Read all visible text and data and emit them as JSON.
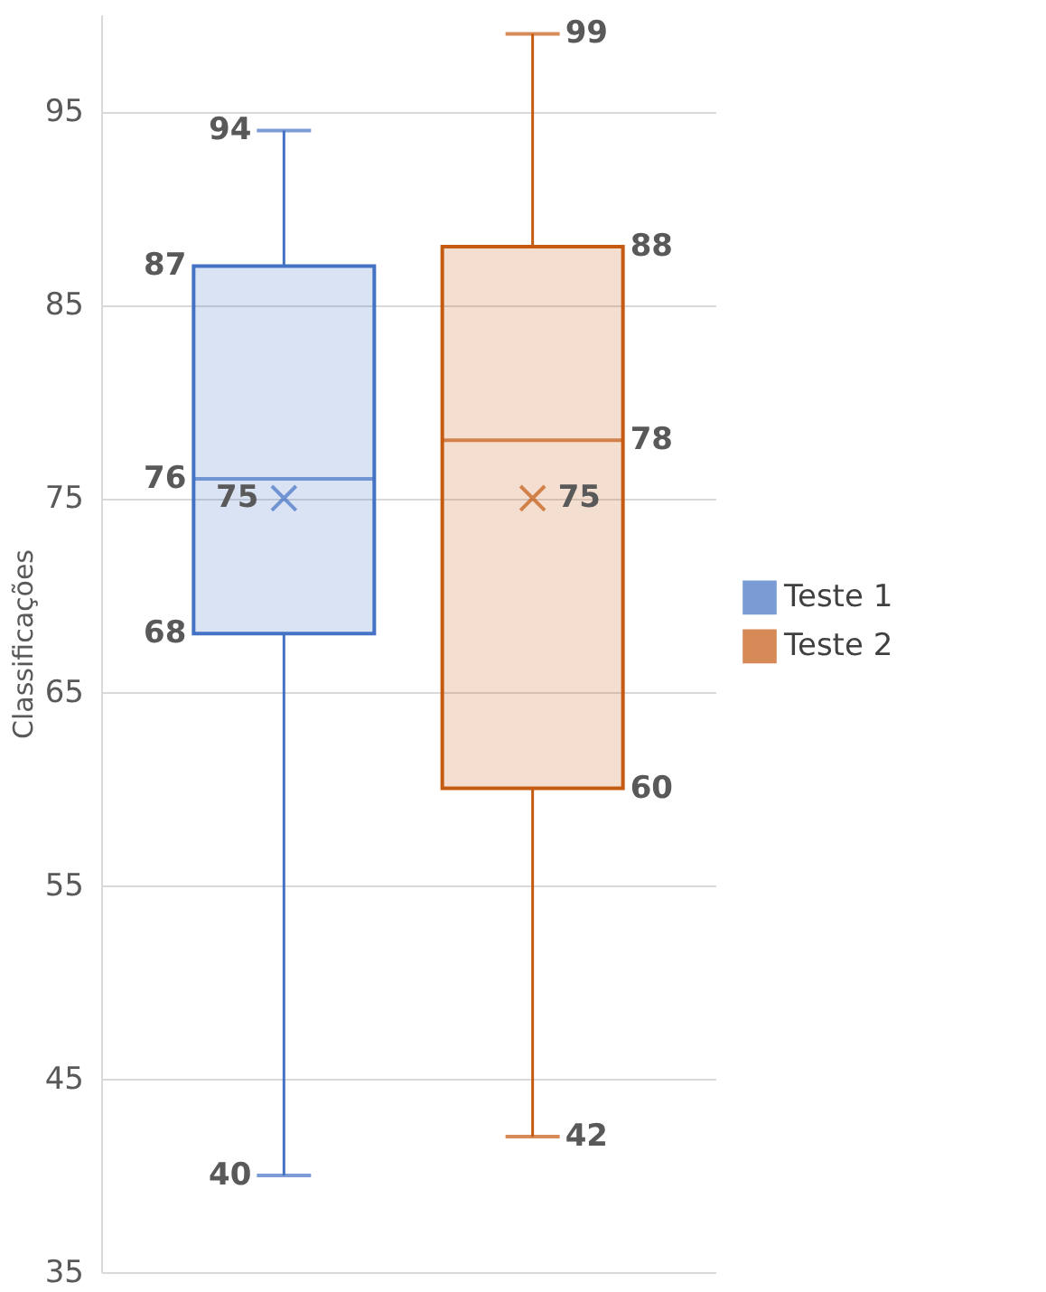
{
  "chart_data": {
    "type": "box",
    "ylabel": "Classificações",
    "categories": [
      null
    ],
    "ylim": [
      35,
      100
    ],
    "yticks": [
      35,
      45,
      55,
      65,
      75,
      85,
      95
    ],
    "grid": "y",
    "legend": "right",
    "tick_labels": "y",
    "data_labels": true,
    "marker": "cross",
    "series": [
      {
        "name": "Teste 1",
        "color": "#4472c4",
        "boxes": [
          {
            "low": 40,
            "q1": 68,
            "median": 76,
            "q3": 87,
            "high": 94,
            "mean": 75
          }
        ],
        "value_labels": [
          [
            "40",
            "68",
            "76",
            "87",
            "94",
            "75"
          ]
        ]
      },
      {
        "name": "Teste 2",
        "color": "#c55a11",
        "boxes": [
          {
            "low": 42,
            "q1": 60,
            "median": 78,
            "q3": 88,
            "high": 99,
            "mean": 75
          }
        ],
        "value_labels": [
          [
            "42",
            "60",
            "78",
            "88",
            "99",
            "75"
          ]
        ]
      }
    ]
  }
}
